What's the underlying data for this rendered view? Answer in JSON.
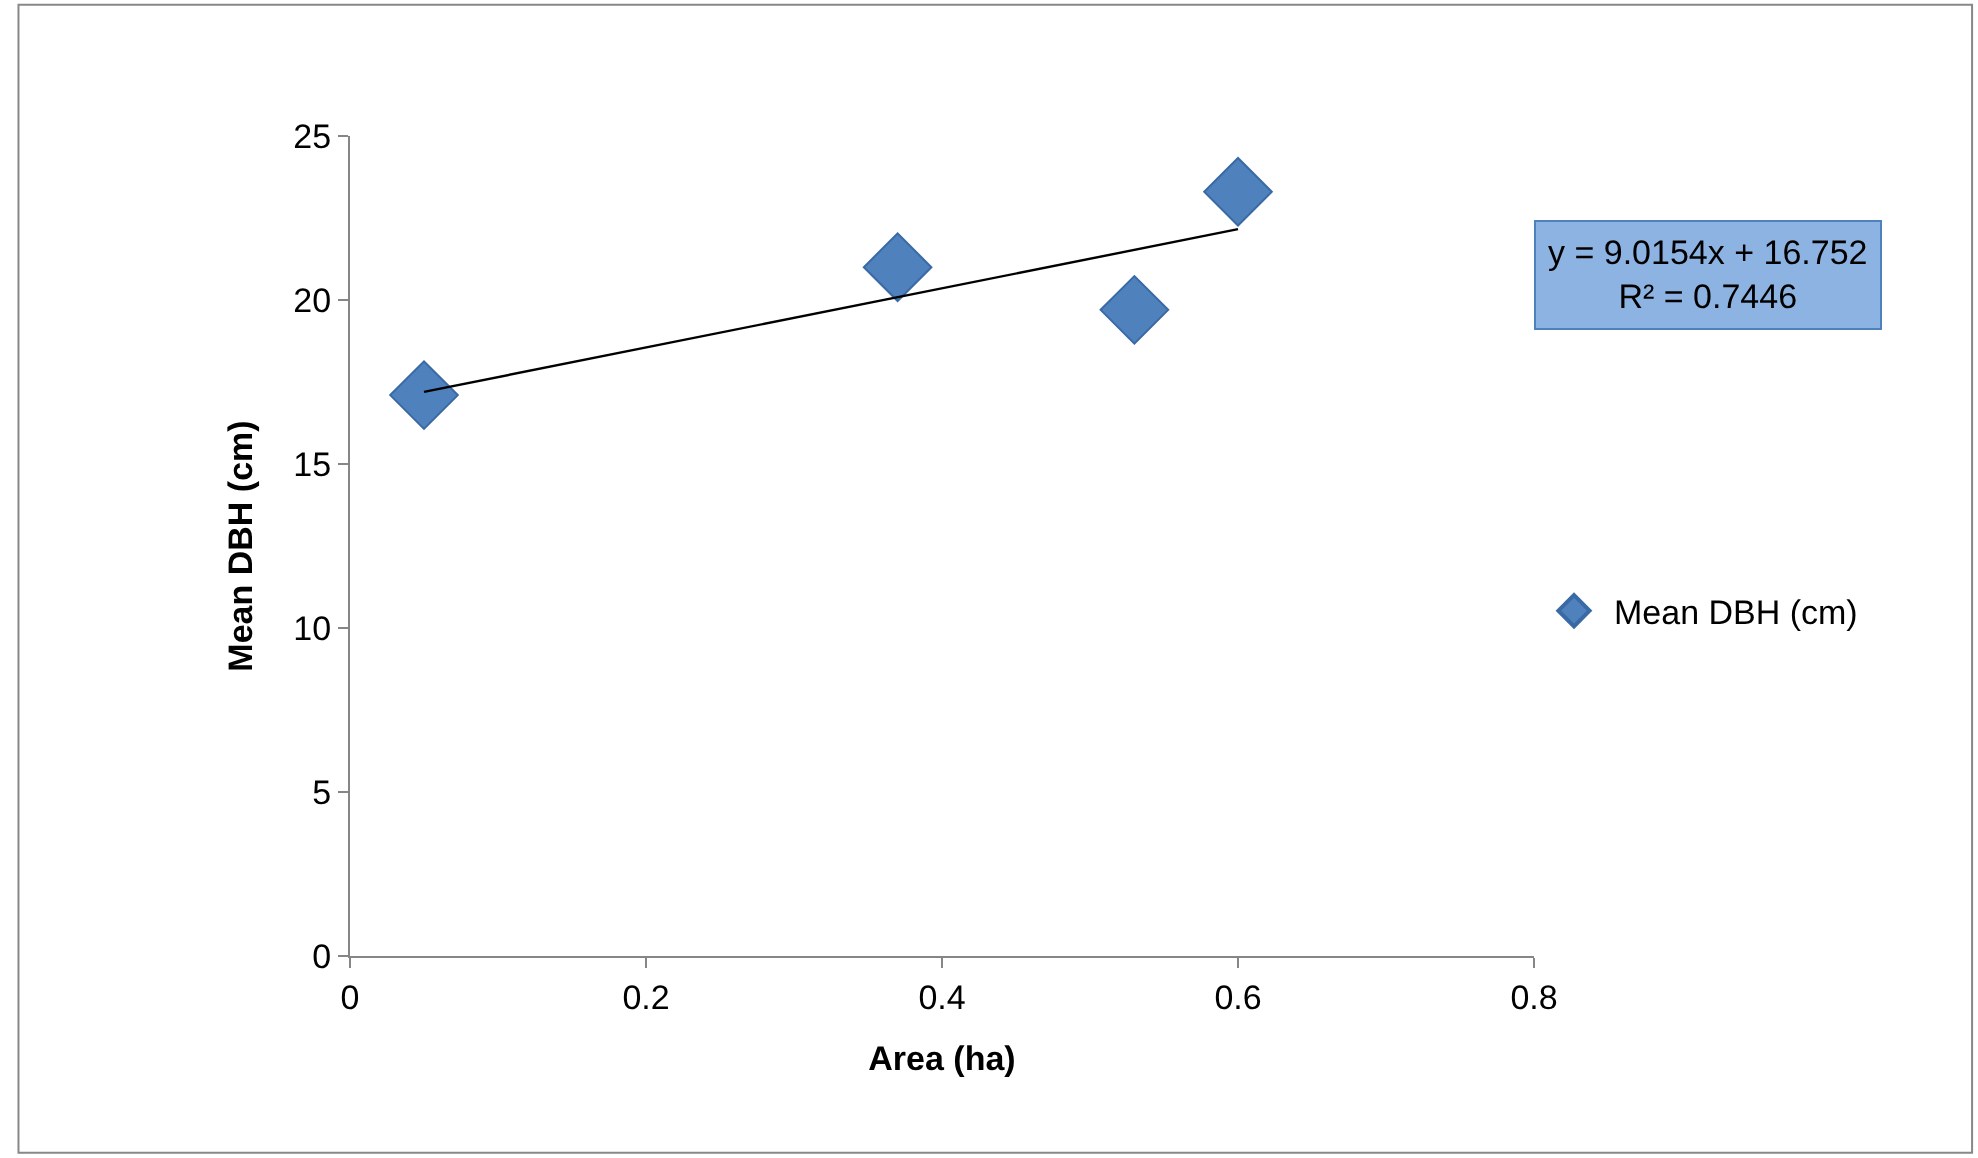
{
  "chart_data": {
    "type": "scatter",
    "xlabel": "Area (ha)",
    "ylabel": "Mean DBH (cm)",
    "xlim": [
      0,
      0.8
    ],
    "xticks": [
      0,
      0.2,
      0.4,
      0.6,
      0.8
    ],
    "ylim": [
      0,
      25
    ],
    "yticks": [
      0,
      5,
      10,
      15,
      20,
      25
    ],
    "series": [
      {
        "name": "Mean DBH (cm)",
        "color": "#4f81bd",
        "marker": "diamond",
        "x": [
          0.05,
          0.37,
          0.53,
          0.6
        ],
        "values": [
          17.1,
          21.0,
          19.7,
          23.3
        ]
      },
      {
        "type": "line",
        "color": "#000000",
        "line_style": "solid",
        "marker": "none",
        "x": [
          0.05,
          0.6
        ],
        "values": [
          17.2,
          22.16
        ]
      }
    ],
    "annotations": [
      "y = 9.0154x + 16.752\nR² = 0.7446"
    ],
    "legend": "right"
  }
}
